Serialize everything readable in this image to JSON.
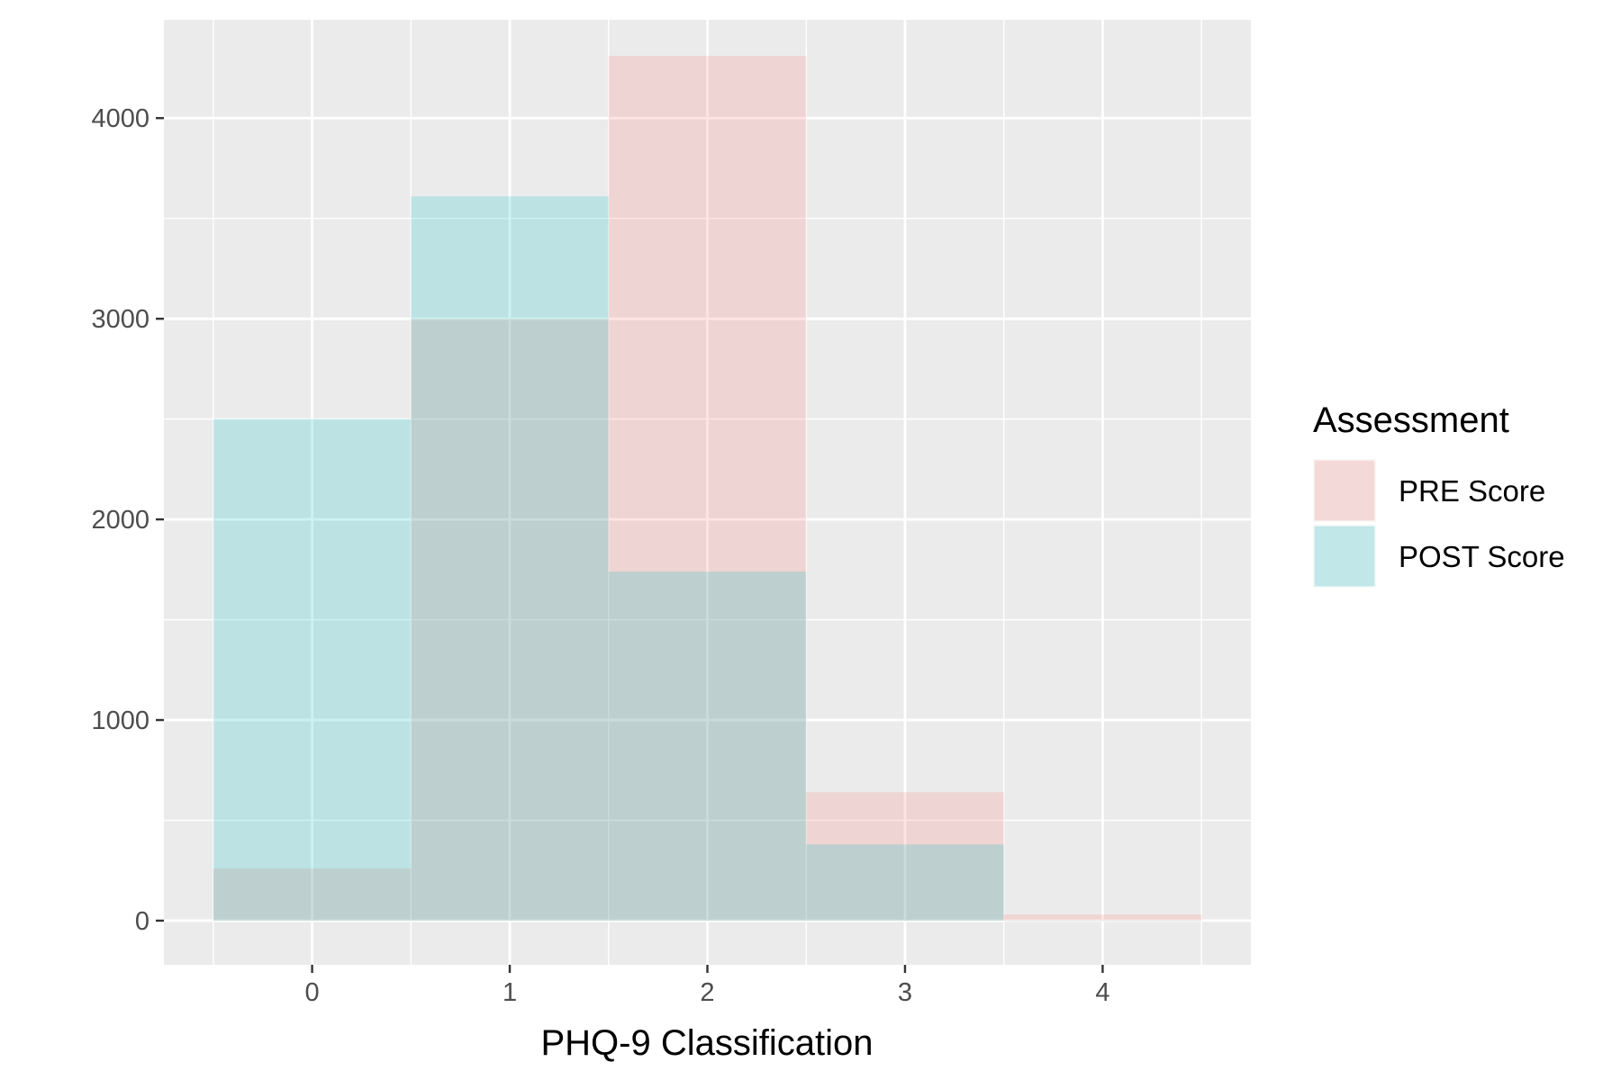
{
  "chart_data": {
    "type": "bar",
    "title": "",
    "xlabel": "PHQ-9 Classification",
    "ylabel": "",
    "categories": [
      "0",
      "1",
      "2",
      "3",
      "4"
    ],
    "x": [
      0,
      1,
      2,
      3,
      4
    ],
    "xlim": [
      -0.75,
      4.75
    ],
    "ylim": [
      -220,
      4490
    ],
    "y_ticks": [
      "0",
      "1000",
      "2000",
      "3000",
      "4000"
    ],
    "y_tick_values": [
      0,
      1000,
      2000,
      3000,
      4000
    ],
    "grid": true,
    "bar_mode": "overlay",
    "bar_width": 1,
    "legend": {
      "title": "Assessment",
      "position": "right"
    },
    "series": [
      {
        "name": "PRE Score",
        "color": "#f8766d",
        "values": [
          260,
          3000,
          4310,
          640,
          30
        ]
      },
      {
        "name": "POST Score",
        "color": "#00bfc4",
        "values": [
          2500,
          3610,
          1740,
          380,
          0
        ]
      }
    ],
    "colors": {
      "panel_background": "#ebebeb",
      "grid": "#ffffff",
      "tick": "#333333",
      "text": "#4d4d4d"
    }
  }
}
